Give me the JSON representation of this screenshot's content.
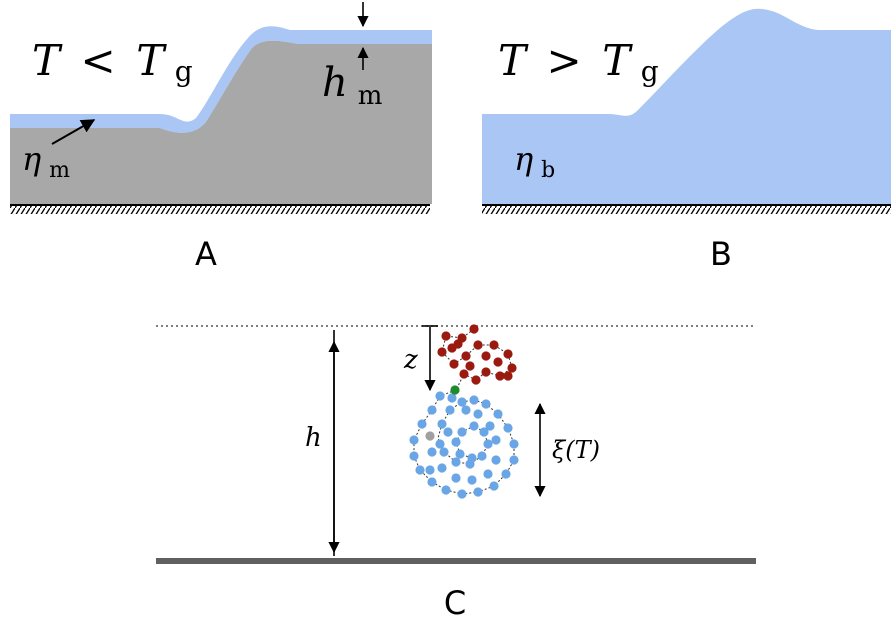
{
  "panels": {
    "a": {
      "label": "A",
      "condition": {
        "lhs": "T",
        "op": "<",
        "rhs_base": "T",
        "rhs_sub": "g"
      },
      "film_thickness": {
        "base": "h",
        "sub": "m"
      },
      "film_viscosity": {
        "base": "η",
        "sub": "m"
      }
    },
    "b": {
      "label": "B",
      "condition": {
        "lhs": "T",
        "op": ">",
        "rhs_base": "T",
        "rhs_sub": "g"
      },
      "bulk_viscosity": {
        "base": "η",
        "sub": "b"
      }
    },
    "c": {
      "label": "C",
      "film_height": "h",
      "depth": "z",
      "size_label": "ξ(T)"
    }
  },
  "colors": {
    "mobile_liquid": "#a9c6f5",
    "glassy_solid": "#a8a8a8",
    "substrate_line": "#606060",
    "surface_bead": "#9a1a10",
    "tagged_bead": "#1d8a2c",
    "chain_bead": "#6aa6e6",
    "end_bead": "#a0a0a0"
  }
}
